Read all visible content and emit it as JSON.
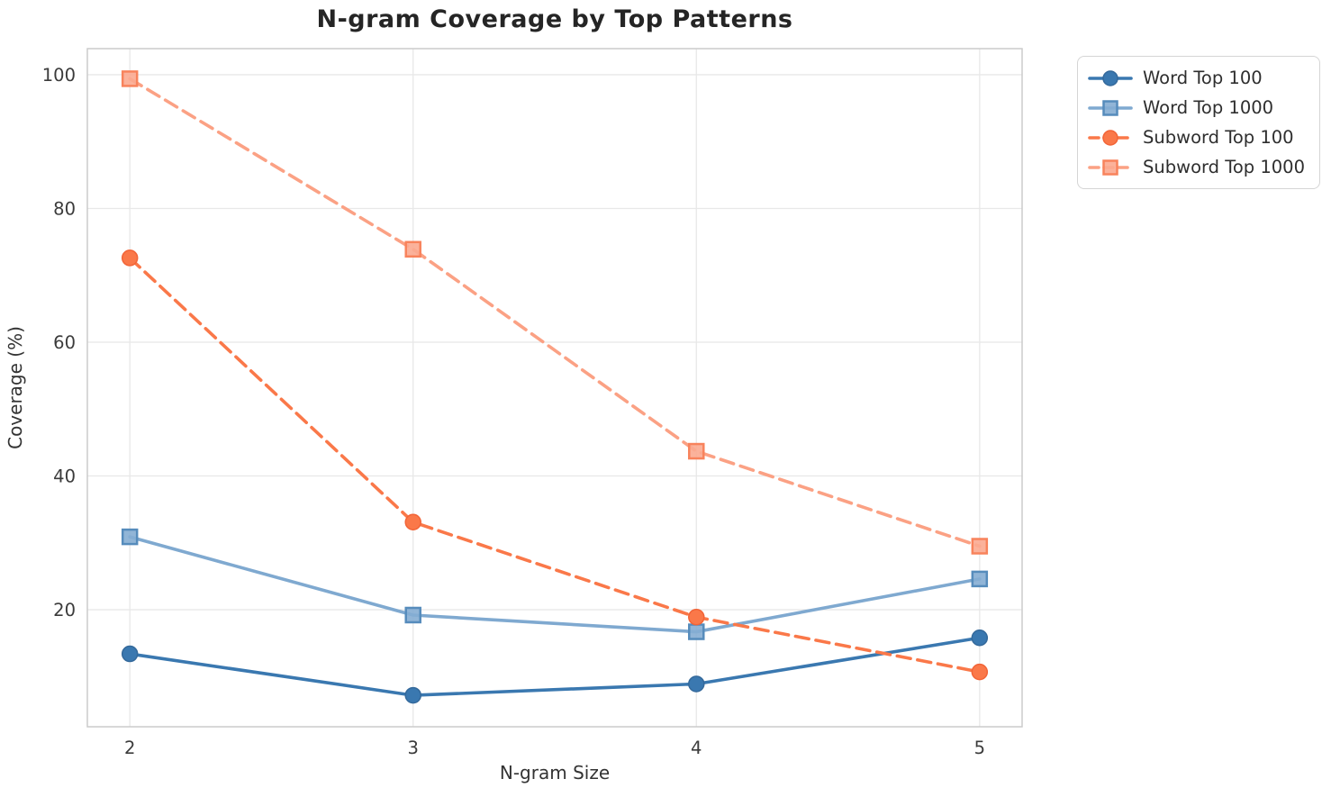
{
  "title": "N-gram Coverage by Top Patterns",
  "chart_data": {
    "type": "line",
    "title": "N-gram Coverage by Top Patterns",
    "xlabel": "N-gram Size",
    "ylabel": "Coverage (%)",
    "x": [
      2,
      3,
      4,
      5
    ],
    "xtick_labels": [
      "2",
      "3",
      "4",
      "5"
    ],
    "yticks": [
      20,
      40,
      60,
      80,
      100
    ],
    "xlim": [
      1.85,
      5.15
    ],
    "ylim": [
      2.5,
      103.9
    ],
    "grid": true,
    "legend_position": "outside-upper-right",
    "series": [
      {
        "name": "Word Top 100",
        "marker": "circle",
        "linestyle": "solid",
        "color": "#3a78b0",
        "marker_fill": "#3a78b0",
        "marker_edge": "#34699b",
        "values": [
          13.4,
          7.2,
          8.9,
          15.8
        ]
      },
      {
        "name": "Word Top 1000",
        "marker": "square",
        "linestyle": "solid",
        "color": "#7fa9d0",
        "marker_fill": "#85add3",
        "marker_edge": "#568cbc",
        "values": [
          30.9,
          19.2,
          16.7,
          24.6
        ]
      },
      {
        "name": "Subword Top 100",
        "marker": "circle",
        "linestyle": "dashed",
        "color": "#fa7849",
        "marker_fill": "#fa7849",
        "marker_edge": "#f26437",
        "values": [
          72.6,
          33.1,
          18.9,
          10.7
        ]
      },
      {
        "name": "Subword Top 1000",
        "marker": "square",
        "linestyle": "dashed",
        "color": "#fba184",
        "marker_fill": "#fbaa90",
        "marker_edge": "#f8835c",
        "values": [
          99.4,
          73.9,
          43.7,
          29.5
        ]
      }
    ],
    "style": {
      "grid_color": "#e8e8e8",
      "spine_color": "#cbcbcb",
      "background": "#ffffff"
    }
  }
}
